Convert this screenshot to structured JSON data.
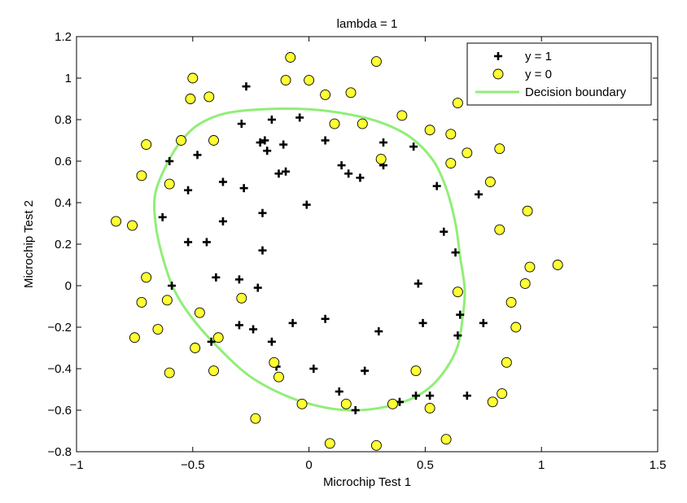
{
  "chart_data": {
    "type": "scatter",
    "title": "lambda = 1",
    "xlabel": "Microchip Test 1",
    "ylabel": "Microchip Test 2",
    "xlim": [
      -1,
      1.5
    ],
    "ylim": [
      -0.8,
      1.2
    ],
    "xticks": [
      -1,
      -0.5,
      0,
      0.5,
      1,
      1.5
    ],
    "xtick_labels": [
      "−1",
      "−0.5",
      "0",
      "0.5",
      "1",
      "1.5"
    ],
    "yticks": [
      -0.8,
      -0.6,
      -0.4,
      -0.2,
      0,
      0.2,
      0.4,
      0.6,
      0.8,
      1,
      1.2
    ],
    "ytick_labels": [
      "−0.8",
      "−0.6",
      "−0.4",
      "−0.2",
      "0",
      "0.2",
      "0.4",
      "0.6",
      "0.8",
      "1",
      "1.2"
    ],
    "grid": false,
    "legend_position": "top-right",
    "series": [
      {
        "name": "y = 1",
        "marker": "plus",
        "color": "#000000",
        "points": [
          [
            -0.27,
            0.96
          ],
          [
            -0.29,
            0.78
          ],
          [
            -0.16,
            0.8
          ],
          [
            -0.19,
            0.7
          ],
          [
            -0.21,
            0.69
          ],
          [
            -0.18,
            0.65
          ],
          [
            -0.11,
            0.68
          ],
          [
            -0.04,
            0.81
          ],
          [
            0.07,
            0.7
          ],
          [
            -0.48,
            0.63
          ],
          [
            -0.6,
            0.6
          ],
          [
            -0.37,
            0.5
          ],
          [
            -0.28,
            0.47
          ],
          [
            -0.13,
            0.54
          ],
          [
            -0.1,
            0.55
          ],
          [
            -0.52,
            0.46
          ],
          [
            -0.2,
            0.35
          ],
          [
            -0.37,
            0.31
          ],
          [
            -0.01,
            0.39
          ],
          [
            0.14,
            0.58
          ],
          [
            0.17,
            0.54
          ],
          [
            0.22,
            0.52
          ],
          [
            0.32,
            0.69
          ],
          [
            0.32,
            0.58
          ],
          [
            0.45,
            0.67
          ],
          [
            0.55,
            0.48
          ],
          [
            -0.63,
            0.33
          ],
          [
            -0.52,
            0.21
          ],
          [
            -0.44,
            0.21
          ],
          [
            -0.2,
            0.17
          ],
          [
            0.58,
            0.26
          ],
          [
            0.63,
            0.16
          ],
          [
            0.73,
            0.44
          ],
          [
            -0.59,
            0.0
          ],
          [
            -0.4,
            0.04
          ],
          [
            -0.3,
            0.03
          ],
          [
            -0.22,
            -0.01
          ],
          [
            0.47,
            0.01
          ],
          [
            -0.3,
            -0.19
          ],
          [
            -0.24,
            -0.21
          ],
          [
            -0.16,
            -0.27
          ],
          [
            -0.07,
            -0.18
          ],
          [
            0.07,
            -0.16
          ],
          [
            0.3,
            -0.22
          ],
          [
            0.49,
            -0.18
          ],
          [
            0.65,
            -0.14
          ],
          [
            0.75,
            -0.18
          ],
          [
            0.64,
            -0.24
          ],
          [
            -0.42,
            -0.27
          ],
          [
            -0.14,
            -0.39
          ],
          [
            0.02,
            -0.4
          ],
          [
            0.24,
            -0.41
          ],
          [
            0.13,
            -0.51
          ],
          [
            0.2,
            -0.6
          ],
          [
            0.39,
            -0.56
          ],
          [
            0.46,
            -0.53
          ],
          [
            0.52,
            -0.53
          ],
          [
            0.68,
            -0.53
          ]
        ]
      },
      {
        "name": "y = 0",
        "marker": "circle",
        "color": "#ffff33",
        "points": [
          [
            -0.5,
            1.0
          ],
          [
            -0.51,
            0.9
          ],
          [
            -0.43,
            0.91
          ],
          [
            -0.1,
            0.99
          ],
          [
            -0.08,
            1.1
          ],
          [
            0.0,
            0.99
          ],
          [
            0.07,
            0.92
          ],
          [
            0.18,
            0.93
          ],
          [
            0.29,
            1.08
          ],
          [
            0.4,
            0.82
          ],
          [
            0.52,
            0.75
          ],
          [
            0.61,
            0.73
          ],
          [
            0.64,
            0.88
          ],
          [
            -0.55,
            0.7
          ],
          [
            -0.7,
            0.68
          ],
          [
            -0.72,
            0.53
          ],
          [
            -0.6,
            0.49
          ],
          [
            -0.41,
            0.7
          ],
          [
            0.11,
            0.78
          ],
          [
            0.23,
            0.78
          ],
          [
            0.31,
            0.61
          ],
          [
            0.61,
            0.59
          ],
          [
            0.68,
            0.64
          ],
          [
            0.82,
            0.66
          ],
          [
            0.78,
            0.5
          ],
          [
            -0.83,
            0.31
          ],
          [
            -0.76,
            0.29
          ],
          [
            0.82,
            0.27
          ],
          [
            0.94,
            0.36
          ],
          [
            -0.7,
            0.04
          ],
          [
            -0.72,
            -0.08
          ],
          [
            -0.61,
            -0.07
          ],
          [
            0.95,
            0.09
          ],
          [
            1.07,
            0.1
          ],
          [
            0.93,
            0.01
          ],
          [
            0.64,
            -0.03
          ],
          [
            -0.29,
            -0.06
          ],
          [
            -0.47,
            -0.13
          ],
          [
            -0.65,
            -0.21
          ],
          [
            -0.75,
            -0.25
          ],
          [
            -0.39,
            -0.25
          ],
          [
            0.87,
            -0.08
          ],
          [
            0.89,
            -0.2
          ],
          [
            -0.49,
            -0.3
          ],
          [
            -0.6,
            -0.42
          ],
          [
            -0.41,
            -0.41
          ],
          [
            -0.13,
            -0.44
          ],
          [
            -0.15,
            -0.37
          ],
          [
            0.46,
            -0.41
          ],
          [
            0.85,
            -0.37
          ],
          [
            -0.23,
            -0.64
          ],
          [
            -0.03,
            -0.57
          ],
          [
            0.16,
            -0.57
          ],
          [
            0.36,
            -0.57
          ],
          [
            0.52,
            -0.59
          ],
          [
            0.79,
            -0.56
          ],
          [
            0.83,
            -0.52
          ],
          [
            0.09,
            -0.76
          ],
          [
            0.29,
            -0.77
          ],
          [
            0.59,
            -0.74
          ]
        ]
      },
      {
        "name": "Decision boundary",
        "type": "line",
        "color": "#90ee77",
        "closed": true,
        "points": [
          [
            -0.66,
            0.45
          ],
          [
            -0.6,
            0.61
          ],
          [
            -0.54,
            0.71
          ],
          [
            -0.47,
            0.78
          ],
          [
            -0.36,
            0.83
          ],
          [
            -0.2,
            0.85
          ],
          [
            0.0,
            0.85
          ],
          [
            0.15,
            0.83
          ],
          [
            0.3,
            0.79
          ],
          [
            0.43,
            0.72
          ],
          [
            0.53,
            0.61
          ],
          [
            0.59,
            0.47
          ],
          [
            0.63,
            0.3
          ],
          [
            0.65,
            0.14
          ],
          [
            0.67,
            -0.02
          ],
          [
            0.66,
            -0.16
          ],
          [
            0.64,
            -0.29
          ],
          [
            0.59,
            -0.4
          ],
          [
            0.52,
            -0.49
          ],
          [
            0.43,
            -0.55
          ],
          [
            0.3,
            -0.59
          ],
          [
            0.17,
            -0.6
          ],
          [
            0.04,
            -0.58
          ],
          [
            -0.1,
            -0.53
          ],
          [
            -0.25,
            -0.44
          ],
          [
            -0.38,
            -0.31
          ],
          [
            -0.5,
            -0.16
          ],
          [
            -0.58,
            -0.02
          ],
          [
            -0.63,
            0.14
          ],
          [
            -0.66,
            0.3
          ]
        ]
      }
    ]
  }
}
